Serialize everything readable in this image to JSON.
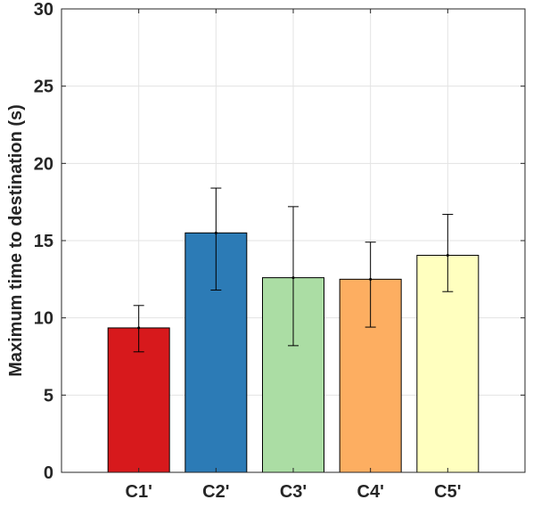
{
  "chart_data": {
    "type": "bar",
    "title": "",
    "xlabel": "",
    "ylabel": "Maximum time to destination (s)",
    "categories": [
      "C1'",
      "C2'",
      "C3'",
      "C4'",
      "C5'"
    ],
    "values": [
      9.35,
      15.5,
      12.6,
      12.5,
      14.05
    ],
    "error_low": [
      7.8,
      11.8,
      8.2,
      9.4,
      11.7
    ],
    "error_high": [
      10.8,
      18.4,
      17.2,
      14.9,
      16.7
    ],
    "colors": [
      "#d7191c",
      "#2c7bb6",
      "#abdda4",
      "#fdae61",
      "#ffffbf"
    ],
    "ylim": [
      0,
      30
    ],
    "yticks": [
      0,
      5,
      10,
      15,
      20,
      25,
      30
    ],
    "ytick_labels": [
      "0",
      "5",
      "10",
      "15",
      "20",
      "25",
      "30"
    ],
    "grid": true,
    "legend": null
  }
}
